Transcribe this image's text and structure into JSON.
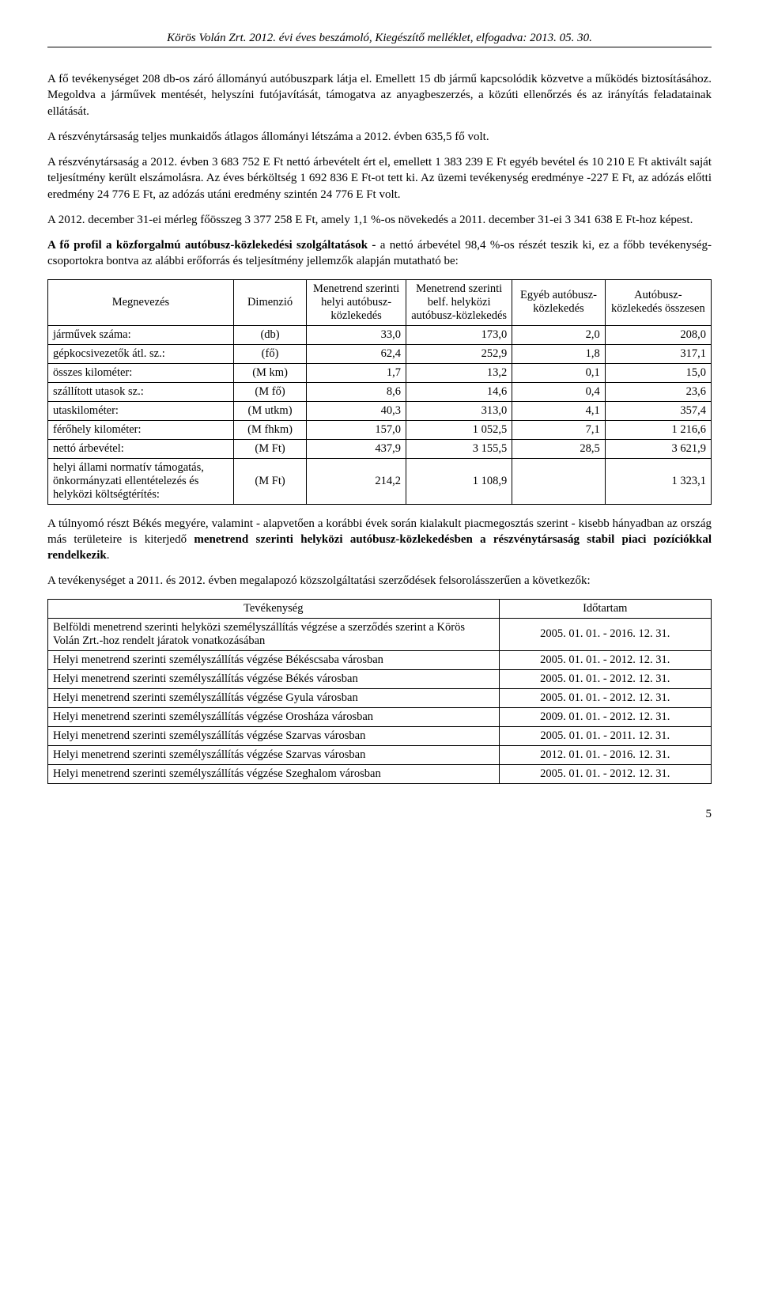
{
  "header": "Körös Volán Zrt. 2012. évi éves beszámoló, Kiegészítő melléklet, elfogadva: 2013. 05. 30.",
  "p1": "A fő tevékenységet 208 db-os záró állományú autóbuszpark látja el. Emellett 15 db jármű kapcsolódik közvetve a működés biztosításához. Megoldva a járművek mentését, helyszíni futójavítását, támogatva az anyagbeszerzés, a közúti ellenőrzés és az irányítás feladatainak ellátását.",
  "p2": "A részvénytársaság teljes munkaidős átlagos állományi létszáma a 2012. évben 635,5 fő volt.",
  "p3": "A részvénytársaság a 2012. évben 3 683 752 E Ft nettó árbevételt ért el, emellett 1 383 239 E Ft egyéb bevétel és 10 210 E Ft aktivált saját teljesítmény került elszámolásra. Az éves bérköltség 1 692 836 E Ft-ot tett ki. Az üzemi tevékenység eredménye -227 E Ft, az adózás előtti eredmény 24 776 E Ft, az adózás utáni eredmény szintén 24 776 E Ft volt.",
  "p4": "A 2012. december 31-ei mérleg főösszeg 3 377 258 E Ft, amely 1,1 %-os növekedés a 2011. december 31-ei 3 341 638 E Ft-hoz képest.",
  "p5a": "A fő profil a közforgalmú autóbusz-közlekedési szolgáltatások -",
  "p5b": " a nettó árbevétel 98,4 %-os részét teszik ki, ez a főbb tevékenység-csoportokra bontva az alábbi erőforrás és teljesítmény jellemzők alapján mutatható be:",
  "table1": {
    "headers": [
      "Megnevezés",
      "Dimenzió",
      "Menetrend szerinti helyi autóbusz-közlekedés",
      "Menetrend szerinti belf. helyközi autóbusz-közlekedés",
      "Egyéb autóbusz-közlekedés",
      "Autóbusz-közlekedés összesen"
    ],
    "rows": [
      [
        "járművek száma:",
        "(db)",
        "33,0",
        "173,0",
        "2,0",
        "208,0"
      ],
      [
        "gépkocsivezetők átl. sz.:",
        "(fő)",
        "62,4",
        "252,9",
        "1,8",
        "317,1"
      ],
      [
        "összes kilométer:",
        "(M km)",
        "1,7",
        "13,2",
        "0,1",
        "15,0"
      ],
      [
        "szállított utasok sz.:",
        "(M fő)",
        "8,6",
        "14,6",
        "0,4",
        "23,6"
      ],
      [
        "utaskilométer:",
        "(M utkm)",
        "40,3",
        "313,0",
        "4,1",
        "357,4"
      ],
      [
        "férőhely kilométer:",
        "(M fhkm)",
        "157,0",
        "1 052,5",
        "7,1",
        "1 216,6"
      ],
      [
        "nettó árbevétel:",
        "(M Ft)",
        "437,9",
        "3 155,5",
        "28,5",
        "3 621,9"
      ],
      [
        "helyi állami normatív támogatás, önkormányzati ellentételezés és helyközi költségtérítés:",
        "(M Ft)",
        "214,2",
        "1 108,9",
        "",
        "1 323,1"
      ]
    ]
  },
  "p6a": "A túlnyomó részt Békés megyére, valamint - alapvetően a korábbi évek során kialakult piacmegosztás szerint - kisebb hányadban az ország más területeire is kiterjedő ",
  "p6b": "menetrend szerinti helyközi autóbusz-közlekedésben a részvénytársaság stabil piaci pozíciókkal rendelkezik",
  "p6c": ".",
  "p7": "A tevékenységet a 2011. és 2012. évben megalapozó közszolgáltatási szerződések felsorolásszerűen a következők:",
  "table2": {
    "headers": [
      "Tevékenység",
      "Időtartam"
    ],
    "rows": [
      [
        "Belföldi menetrend szerinti helyközi személyszállítás végzése a szerződés szerint a Körös Volán Zrt.-hoz rendelt járatok vonatkozásában",
        "2005. 01. 01. - 2016. 12. 31."
      ],
      [
        "Helyi menetrend szerinti személyszállítás végzése Békéscsaba városban",
        "2005. 01. 01. - 2012. 12. 31."
      ],
      [
        "Helyi menetrend szerinti személyszállítás végzése Békés városban",
        "2005. 01. 01. - 2012. 12. 31."
      ],
      [
        "Helyi menetrend szerinti személyszállítás végzése Gyula városban",
        "2005. 01. 01. - 2012. 12. 31."
      ],
      [
        "Helyi menetrend szerinti személyszállítás végzése Orosháza városban",
        "2009. 01. 01. - 2012. 12. 31."
      ],
      [
        "Helyi menetrend szerinti személyszállítás végzése Szarvas városban",
        "2005. 01. 01. - 2011. 12. 31."
      ],
      [
        "Helyi menetrend szerinti személyszállítás végzése Szarvas városban",
        "2012. 01. 01. - 2016. 12. 31."
      ],
      [
        "Helyi menetrend szerinti személyszállítás végzése Szeghalom városban",
        "2005. 01. 01. - 2012. 12. 31."
      ]
    ]
  },
  "pagenum": "5"
}
